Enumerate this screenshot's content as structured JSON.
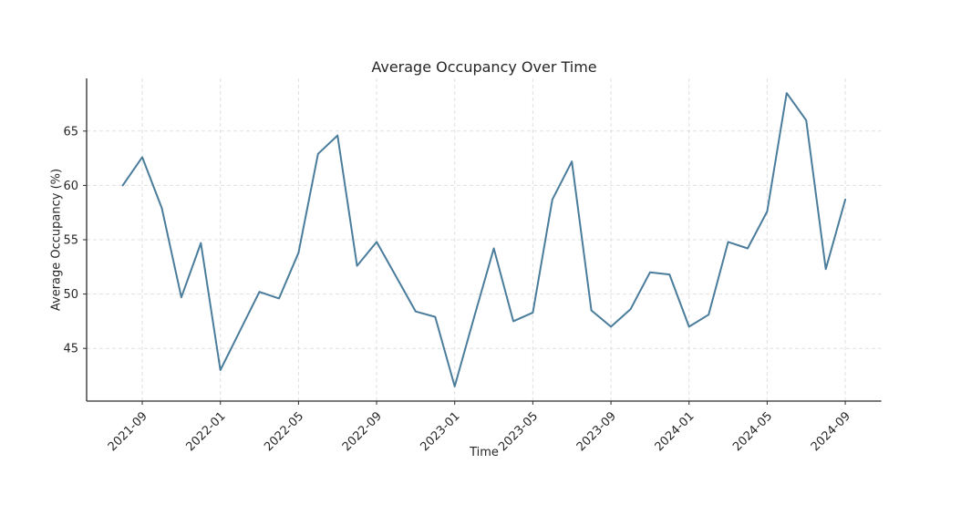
{
  "chart_data": {
    "type": "line",
    "title": "Average Occupancy Over Time",
    "xlabel": "Time",
    "ylabel": "Average Occupancy (%)",
    "x": [
      "2021-08",
      "2021-09",
      "2021-10",
      "2021-11",
      "2021-12",
      "2022-01",
      "2022-02",
      "2022-03",
      "2022-04",
      "2022-05",
      "2022-06",
      "2022-07",
      "2022-08",
      "2022-09",
      "2022-10",
      "2022-11",
      "2022-12",
      "2023-01",
      "2023-02",
      "2023-03",
      "2023-04",
      "2023-05",
      "2023-06",
      "2023-07",
      "2023-08",
      "2023-09",
      "2023-10",
      "2023-11",
      "2023-12",
      "2024-01",
      "2024-02",
      "2024-03",
      "2024-04",
      "2024-05",
      "2024-06",
      "2024-07",
      "2024-08",
      "2024-09"
    ],
    "values": [
      60.0,
      62.6,
      57.9,
      49.7,
      54.7,
      43.0,
      46.6,
      50.2,
      49.6,
      53.8,
      62.9,
      64.6,
      52.6,
      54.8,
      51.6,
      48.4,
      47.9,
      41.5,
      47.9,
      54.2,
      47.5,
      48.3,
      58.7,
      62.2,
      48.5,
      47.0,
      48.6,
      52.0,
      51.8,
      47.0,
      48.1,
      54.8,
      54.2,
      57.6,
      68.5,
      66.0,
      52.3,
      58.7
    ],
    "series_name": "Average Occupancy",
    "x_tick_labels": [
      "2021-09",
      "2022-01",
      "2022-05",
      "2022-09",
      "2023-01",
      "2023-05",
      "2023-09",
      "2024-01",
      "2024-05",
      "2024-09"
    ],
    "y_ticks": [
      45,
      50,
      55,
      60,
      65
    ],
    "ylim": [
      40.15,
      69.85
    ],
    "grid": true,
    "grid_style": "dashed",
    "legend": "none",
    "colors": {
      "line": "#4a7c9b",
      "grid": "#e0e0e0",
      "spine": "#2b2b2b",
      "text": "#262626",
      "background": "#ffffff"
    }
  }
}
